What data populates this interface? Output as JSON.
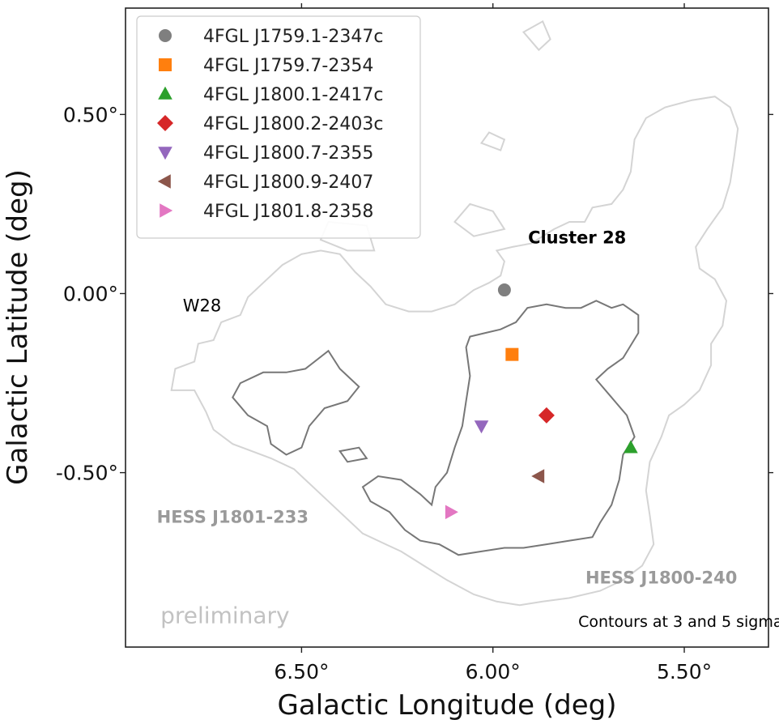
{
  "chart_data": {
    "type": "scatter",
    "xlabel": "Galactic Longitude (deg)",
    "ylabel": "Galactic Latitude (deg)",
    "x_reversed": true,
    "xlim": [
      6.96,
      5.28
    ],
    "ylim": [
      -0.987,
      0.797
    ],
    "xticks": [
      {
        "value": 6.5,
        "label": "6.50°"
      },
      {
        "value": 6.0,
        "label": "6.00°"
      },
      {
        "value": 5.5,
        "label": "5.50°"
      }
    ],
    "yticks": [
      {
        "value": 0.5,
        "label": "0.50°"
      },
      {
        "value": 0.0,
        "label": "0.00°"
      },
      {
        "value": -0.5,
        "label": "-0.50°"
      }
    ],
    "legend_position": "top-left",
    "series": [
      {
        "name": "4FGL J1759.1-2347c",
        "marker": "circle",
        "color": "#7f7f7f",
        "x": [
          5.97
        ],
        "y": [
          0.01
        ]
      },
      {
        "name": "4FGL J1759.7-2354",
        "marker": "square",
        "color": "#ff7f0e",
        "x": [
          5.95
        ],
        "y": [
          -0.17
        ]
      },
      {
        "name": "4FGL J1800.1-2417c",
        "marker": "triangle-up",
        "color": "#2ca02c",
        "x": [
          5.64
        ],
        "y": [
          -0.43
        ]
      },
      {
        "name": "4FGL J1800.2-2403c",
        "marker": "diamond",
        "color": "#d62728",
        "x": [
          5.86
        ],
        "y": [
          -0.34
        ]
      },
      {
        "name": "4FGL J1800.7-2355",
        "marker": "triangle-down",
        "color": "#9467bd",
        "x": [
          6.03
        ],
        "y": [
          -0.37
        ]
      },
      {
        "name": "4FGL J1800.9-2407",
        "marker": "triangle-left",
        "color": "#8c564b",
        "x": [
          5.88
        ],
        "y": [
          -0.51
        ]
      },
      {
        "name": "4FGL J1801.8-2358",
        "marker": "triangle-right",
        "color": "#e377c2",
        "x": [
          6.11
        ],
        "y": [
          -0.61
        ]
      }
    ],
    "annotations": [
      {
        "text": "Cluster 28",
        "x": 5.78,
        "y": 0.14
      },
      {
        "text": "W28",
        "x": 6.76,
        "y": -0.05
      },
      {
        "text": "HESS J1801-233",
        "x": 6.68,
        "y": -0.64
      },
      {
        "text": "HESS J1800-240",
        "x": 5.56,
        "y": -0.81
      },
      {
        "text": "preliminary",
        "x": 6.7,
        "y": -0.92
      },
      {
        "text": "Contours at 3 and 5 sigma",
        "x": 5.51,
        "y": -0.93
      }
    ],
    "contour_colors": {
      "sigma3": "#d4d4d4",
      "sigma5": "#777777"
    },
    "contour_3sigma": [
      [
        6.78,
        -0.27
      ],
      [
        6.84,
        -0.27
      ],
      [
        6.83,
        -0.21
      ],
      [
        6.78,
        -0.19
      ],
      [
        6.77,
        -0.14
      ],
      [
        6.73,
        -0.13
      ],
      [
        6.71,
        -0.08
      ],
      [
        6.66,
        -0.06
      ],
      [
        6.64,
        -0.01
      ],
      [
        6.6,
        0.03
      ],
      [
        6.55,
        0.08
      ],
      [
        6.5,
        0.11
      ],
      [
        6.45,
        0.12
      ],
      [
        6.4,
        0.11
      ],
      [
        6.36,
        0.06
      ],
      [
        6.32,
        0.02
      ],
      [
        6.28,
        -0.03
      ],
      [
        6.22,
        -0.05
      ],
      [
        6.16,
        -0.05
      ],
      [
        6.1,
        -0.03
      ],
      [
        6.05,
        0.01
      ],
      [
        6.01,
        0.03
      ],
      [
        5.98,
        0.05
      ],
      [
        5.97,
        0.09
      ],
      [
        5.99,
        0.12
      ],
      [
        5.95,
        0.13
      ],
      [
        5.9,
        0.14
      ],
      [
        5.84,
        0.18
      ],
      [
        5.8,
        0.2
      ],
      [
        5.76,
        0.2
      ],
      [
        5.74,
        0.24
      ],
      [
        5.69,
        0.25
      ],
      [
        5.66,
        0.29
      ],
      [
        5.64,
        0.34
      ],
      [
        5.63,
        0.43
      ],
      [
        5.6,
        0.49
      ],
      [
        5.55,
        0.52
      ],
      [
        5.48,
        0.54
      ],
      [
        5.42,
        0.55
      ],
      [
        5.38,
        0.52
      ],
      [
        5.36,
        0.46
      ],
      [
        5.37,
        0.38
      ],
      [
        5.38,
        0.31
      ],
      [
        5.4,
        0.24
      ],
      [
        5.44,
        0.18
      ],
      [
        5.47,
        0.13
      ],
      [
        5.46,
        0.07
      ],
      [
        5.42,
        0.04
      ],
      [
        5.39,
        -0.02
      ],
      [
        5.4,
        -0.09
      ],
      [
        5.43,
        -0.14
      ],
      [
        5.43,
        -0.2
      ],
      [
        5.46,
        -0.27
      ],
      [
        5.5,
        -0.31
      ],
      [
        5.54,
        -0.34
      ],
      [
        5.56,
        -0.4
      ],
      [
        5.59,
        -0.47
      ],
      [
        5.6,
        -0.55
      ],
      [
        5.59,
        -0.62
      ],
      [
        5.58,
        -0.7
      ],
      [
        5.61,
        -0.76
      ],
      [
        5.66,
        -0.8
      ],
      [
        5.72,
        -0.83
      ],
      [
        5.8,
        -0.85
      ],
      [
        5.87,
        -0.86
      ],
      [
        5.93,
        -0.87
      ],
      [
        5.99,
        -0.86
      ],
      [
        6.05,
        -0.84
      ],
      [
        6.12,
        -0.8
      ],
      [
        6.18,
        -0.76
      ],
      [
        6.24,
        -0.72
      ],
      [
        6.28,
        -0.7
      ],
      [
        6.34,
        -0.67
      ],
      [
        6.4,
        -0.61
      ],
      [
        6.46,
        -0.55
      ],
      [
        6.52,
        -0.49
      ],
      [
        6.58,
        -0.46
      ],
      [
        6.63,
        -0.44
      ],
      [
        6.68,
        -0.42
      ],
      [
        6.73,
        -0.38
      ],
      [
        6.75,
        -0.33
      ],
      [
        6.78,
        -0.27
      ]
    ],
    "contour_3sigma_blobs": [
      [
        [
          6.38,
          0.12
        ],
        [
          6.45,
          0.15
        ],
        [
          6.43,
          0.2
        ],
        [
          6.33,
          0.19
        ],
        [
          6.31,
          0.12
        ],
        [
          6.38,
          0.12
        ]
      ],
      [
        [
          6.05,
          0.16
        ],
        [
          6.1,
          0.2
        ],
        [
          6.06,
          0.25
        ],
        [
          6.0,
          0.23
        ],
        [
          5.97,
          0.18
        ],
        [
          6.05,
          0.16
        ]
      ],
      [
        [
          5.88,
          0.68
        ],
        [
          5.92,
          0.73
        ],
        [
          5.87,
          0.76
        ],
        [
          5.85,
          0.71
        ],
        [
          5.88,
          0.68
        ]
      ],
      [
        [
          5.98,
          0.4
        ],
        [
          6.03,
          0.42
        ],
        [
          6.01,
          0.45
        ],
        [
          5.97,
          0.43
        ],
        [
          5.98,
          0.4
        ]
      ]
    ],
    "contour_5sigma": [
      [
        6.35,
        -0.26
      ],
      [
        6.4,
        -0.21
      ],
      [
        6.43,
        -0.16
      ],
      [
        6.49,
        -0.21
      ],
      [
        6.54,
        -0.22
      ],
      [
        6.6,
        -0.22
      ],
      [
        6.66,
        -0.25
      ],
      [
        6.68,
        -0.29
      ],
      [
        6.64,
        -0.34
      ],
      [
        6.59,
        -0.37
      ],
      [
        6.58,
        -0.42
      ],
      [
        6.54,
        -0.45
      ],
      [
        6.5,
        -0.43
      ],
      [
        6.48,
        -0.37
      ],
      [
        6.44,
        -0.32
      ],
      [
        6.38,
        -0.3
      ],
      [
        6.35,
        -0.26
      ]
    ],
    "contour_5sigma_main": [
      [
        6.16,
        -0.59
      ],
      [
        6.15,
        -0.54
      ],
      [
        6.12,
        -0.5
      ],
      [
        6.1,
        -0.43
      ],
      [
        6.08,
        -0.37
      ],
      [
        6.07,
        -0.3
      ],
      [
        6.06,
        -0.23
      ],
      [
        6.07,
        -0.15
      ],
      [
        6.06,
        -0.12
      ],
      [
        6.02,
        -0.11
      ],
      [
        5.98,
        -0.1
      ],
      [
        5.94,
        -0.08
      ],
      [
        5.91,
        -0.04
      ],
      [
        5.86,
        -0.03
      ],
      [
        5.81,
        -0.04
      ],
      [
        5.77,
        -0.04
      ],
      [
        5.73,
        -0.02
      ],
      [
        5.69,
        -0.04
      ],
      [
        5.66,
        -0.03
      ],
      [
        5.62,
        -0.06
      ],
      [
        5.62,
        -0.11
      ],
      [
        5.66,
        -0.18
      ],
      [
        5.7,
        -0.21
      ],
      [
        5.73,
        -0.24
      ],
      [
        5.69,
        -0.29
      ],
      [
        5.65,
        -0.34
      ],
      [
        5.63,
        -0.4
      ],
      [
        5.66,
        -0.45
      ],
      [
        5.67,
        -0.52
      ],
      [
        5.69,
        -0.59
      ],
      [
        5.72,
        -0.64
      ],
      [
        5.74,
        -0.68
      ],
      [
        5.8,
        -0.69
      ],
      [
        5.86,
        -0.7
      ],
      [
        5.92,
        -0.71
      ],
      [
        5.97,
        -0.71
      ],
      [
        6.03,
        -0.72
      ],
      [
        6.09,
        -0.73
      ],
      [
        6.14,
        -0.7
      ],
      [
        6.19,
        -0.69
      ],
      [
        6.23,
        -0.66
      ],
      [
        6.27,
        -0.61
      ],
      [
        6.32,
        -0.58
      ],
      [
        6.34,
        -0.54
      ],
      [
        6.3,
        -0.51
      ],
      [
        6.24,
        -0.52
      ],
      [
        6.19,
        -0.56
      ],
      [
        6.16,
        -0.59
      ]
    ],
    "contour_5sigma_blob": [
      [
        6.35,
        -0.43
      ],
      [
        6.4,
        -0.44
      ],
      [
        6.38,
        -0.47
      ],
      [
        6.33,
        -0.46
      ],
      [
        6.35,
        -0.43
      ]
    ]
  }
}
